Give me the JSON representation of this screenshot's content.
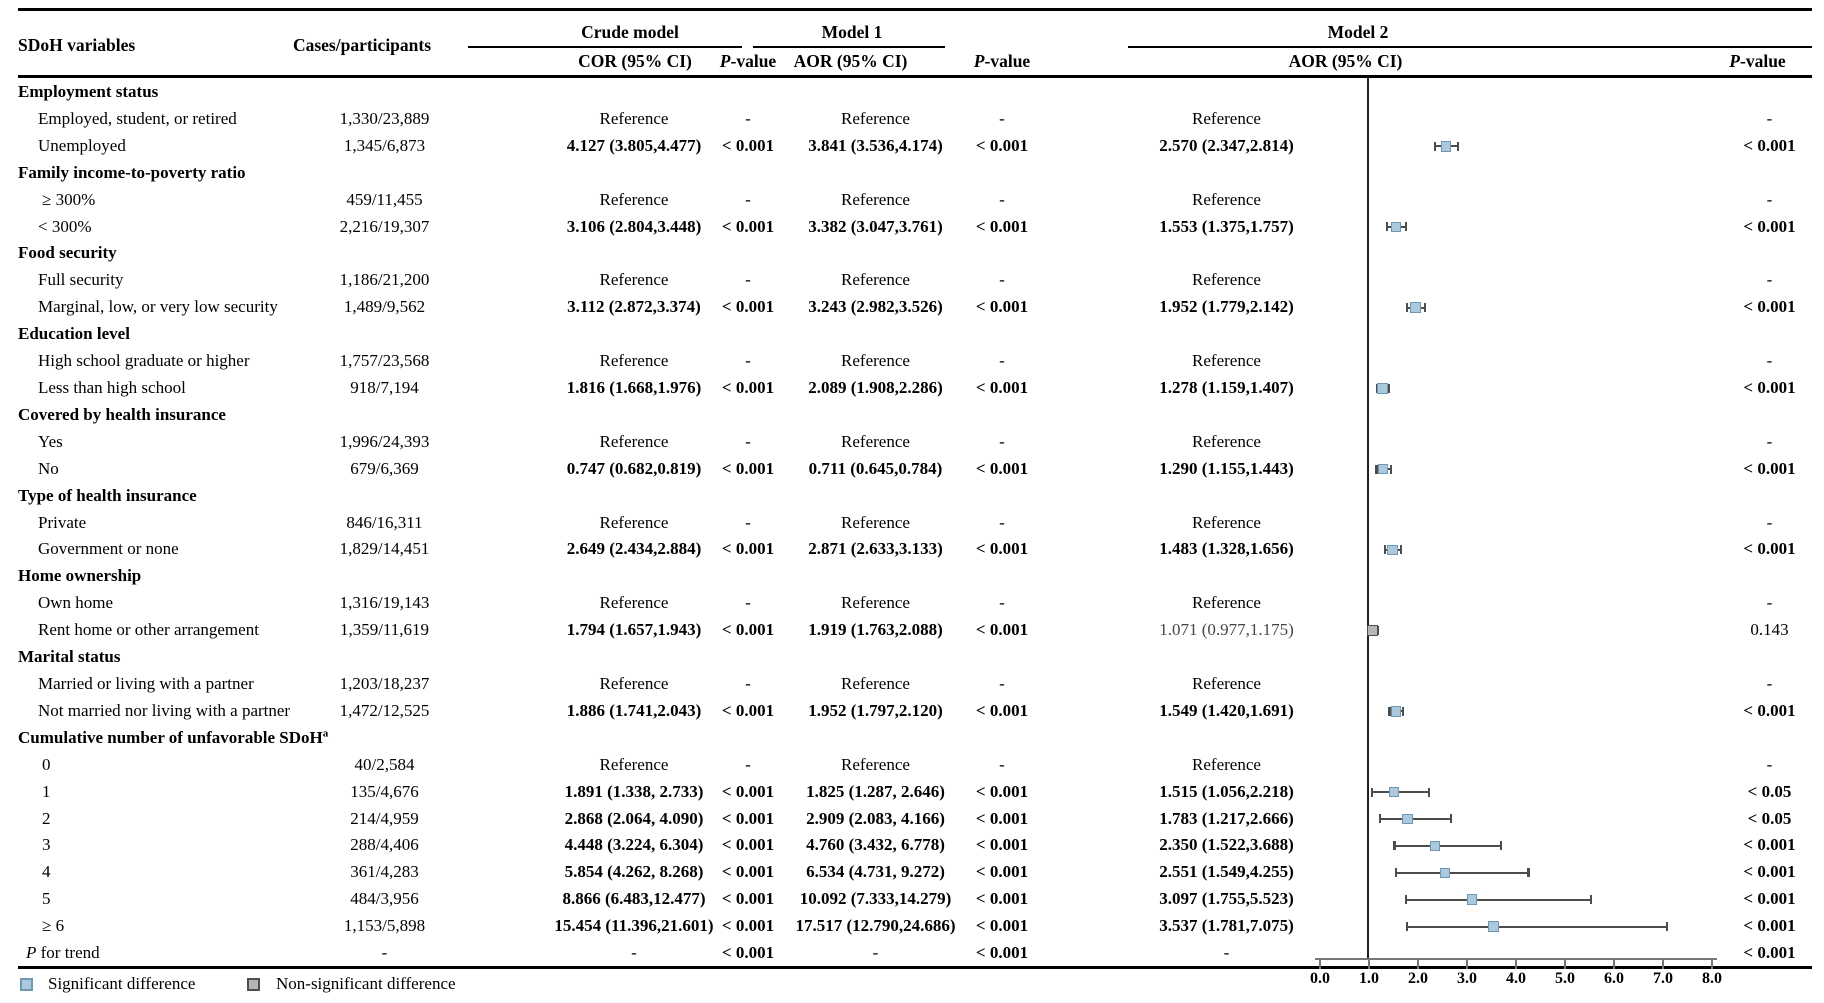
{
  "header": {
    "col_sdoh": "SDoH variables",
    "col_cases": "Cases/participants",
    "group_crude": "Crude model",
    "group_model1": "Model 1",
    "group_model2": "Model 2",
    "col_cor": "COR (95% CI)",
    "col_aor_m1": "AOR (95% CI)",
    "col_aor_m2": "AOR (95% CI)",
    "p_italic": "P",
    "p_rest": "-value"
  },
  "axis": {
    "tick_labels": [
      "0.0",
      "1.0",
      "2.0",
      "3.0",
      "4.0",
      "5.0",
      "6.0",
      "7.0",
      "8.0"
    ],
    "min": 0,
    "max": 8,
    "reference_value": 1.0
  },
  "legend": {
    "significant": "Significant difference",
    "non_significant": "Non-significant difference"
  },
  "colors": {
    "significant_fill": "#abc8dc",
    "significant_border": "#6d98b4",
    "nonsignificant_fill": "#b5b5b5",
    "nonsignificant_border": "#4f4f4f",
    "ci_line": "#4d4d4d",
    "axis_line": "#767676"
  },
  "rows": [
    {
      "t": "g",
      "label": "Employment status"
    },
    {
      "t": "i",
      "label": "Employed, student, or retired",
      "cases": "1,330/23,889",
      "cor": "Reference",
      "corP": "-",
      "a1": "Reference",
      "a1P": "-",
      "a2": "Reference",
      "a2P": "-",
      "mk": null
    },
    {
      "t": "i",
      "label": "Unemployed",
      "cases": "1,345/6,873",
      "cor": "4.127 (3.805,4.477)",
      "corP": "< 0.001",
      "a1": "3.841 (3.536,4.174)",
      "a1P": "< 0.001",
      "a2": "2.570 (2.347,2.814)",
      "a2P": "< 0.001",
      "mk": [
        2.57,
        2.347,
        2.814,
        1
      ]
    },
    {
      "t": "g",
      "label": "Family income-to-poverty ratio"
    },
    {
      "t": "i",
      "label": "≥ 300%",
      "cases": "459/11,455",
      "cor": "Reference",
      "corP": "-",
      "a1": "Reference",
      "a1P": "-",
      "a2": "Reference",
      "a2P": "-",
      "mk": null
    },
    {
      "t": "i",
      "label": "< 300%",
      "cases": "2,216/19,307",
      "cor": "3.106 (2.804,3.448)",
      "corP": "< 0.001",
      "a1": "3.382 (3.047,3.761)",
      "a1P": "< 0.001",
      "a2": "1.553 (1.375,1.757)",
      "a2P": "< 0.001",
      "mk": [
        1.553,
        1.375,
        1.757,
        1
      ]
    },
    {
      "t": "g",
      "label": "Food security"
    },
    {
      "t": "i",
      "label": "Full security",
      "cases": "1,186/21,200",
      "cor": "Reference",
      "corP": "-",
      "a1": "Reference",
      "a1P": "-",
      "a2": "Reference",
      "a2P": "-",
      "mk": null
    },
    {
      "t": "i",
      "label": "Marginal, low, or very low security",
      "cases": "1,489/9,562",
      "cor": "3.112 (2.872,3.374)",
      "corP": "< 0.001",
      "a1": "3.243 (2.982,3.526)",
      "a1P": "< 0.001",
      "a2": "1.952 (1.779,2.142)",
      "a2P": "< 0.001",
      "mk": [
        1.952,
        1.779,
        2.142,
        1
      ]
    },
    {
      "t": "g",
      "label": "Education level"
    },
    {
      "t": "i",
      "label": "High school graduate or higher",
      "cases": "1,757/23,568",
      "cor": "Reference",
      "corP": "-",
      "a1": "Reference",
      "a1P": "-",
      "a2": "Reference",
      "a2P": "-",
      "mk": null
    },
    {
      "t": "i",
      "label": "Less than high school",
      "cases": "918/7,194",
      "cor": "1.816 (1.668,1.976)",
      "corP": "< 0.001",
      "a1": "2.089 (1.908,2.286)",
      "a1P": "< 0.001",
      "a2": "1.278 (1.159,1.407)",
      "a2P": "< 0.001",
      "mk": [
        1.278,
        1.159,
        1.407,
        1
      ]
    },
    {
      "t": "g",
      "label": "Covered by health insurance"
    },
    {
      "t": "i",
      "label": "Yes",
      "cases": "1,996/24,393",
      "cor": "Reference",
      "corP": "-",
      "a1": "Reference",
      "a1P": "-",
      "a2": "Reference",
      "a2P": "-",
      "mk": null
    },
    {
      "t": "i",
      "label": "No",
      "cases": "679/6,369",
      "cor": "0.747 (0.682,0.819)",
      "corP": "< 0.001",
      "a1": "0.711 (0.645,0.784)",
      "a1P": "< 0.001",
      "a2": "1.290 (1.155,1.443)",
      "a2P": "< 0.001",
      "mk": [
        1.29,
        1.155,
        1.443,
        1
      ]
    },
    {
      "t": "g",
      "label": "Type of health insurance"
    },
    {
      "t": "i",
      "label": "Private",
      "cases": "846/16,311",
      "cor": "Reference",
      "corP": "-",
      "a1": "Reference",
      "a1P": "-",
      "a2": "Reference",
      "a2P": "-",
      "mk": null
    },
    {
      "t": "i",
      "label": "Government or none",
      "cases": "1,829/14,451",
      "cor": "2.649 (2.434,2.884)",
      "corP": "< 0.001",
      "a1": "2.871 (2.633,3.133)",
      "a1P": "< 0.001",
      "a2": "1.483 (1.328,1.656)",
      "a2P": "< 0.001",
      "mk": [
        1.483,
        1.328,
        1.656,
        1
      ]
    },
    {
      "t": "g",
      "label": "Home ownership"
    },
    {
      "t": "i",
      "label": "Own home",
      "cases": "1,316/19,143",
      "cor": "Reference",
      "corP": "-",
      "a1": "Reference",
      "a1P": "-",
      "a2": "Reference",
      "a2P": "-",
      "mk": null
    },
    {
      "t": "i",
      "label": "Rent home or other arrangement",
      "cases": "1,359/11,619",
      "cor": "1.794 (1.657,1.943)",
      "corP": "< 0.001",
      "a1": "1.919 (1.763,2.088)",
      "a1P": "< 0.001",
      "a2": "1.071 (0.977,1.175)",
      "a2P": "0.143",
      "a2m": 1,
      "mk": [
        1.071,
        0.977,
        1.175,
        0
      ]
    },
    {
      "t": "g",
      "label": "Marital status"
    },
    {
      "t": "i",
      "label": "Married or living with a partner",
      "cases": "1,203/18,237",
      "cor": "Reference",
      "corP": "-",
      "a1": "Reference",
      "a1P": "-",
      "a2": "Reference",
      "a2P": "-",
      "mk": null
    },
    {
      "t": "i",
      "label": "Not married nor living with a partner",
      "cases": "1,472/12,525",
      "cor": "1.886 (1.741,2.043)",
      "corP": "< 0.001",
      "a1": "1.952 (1.797,2.120)",
      "a1P": "< 0.001",
      "a2": "1.549 (1.420,1.691)",
      "a2P": "< 0.001",
      "mk": [
        1.549,
        1.42,
        1.691,
        1
      ]
    },
    {
      "t": "g",
      "label": "Cumulative number of unfavorable SDoH",
      "sup": "a"
    },
    {
      "t": "i",
      "label": "0",
      "cases": "40/2,584",
      "cor": "Reference",
      "corP": "-",
      "a1": "Reference",
      "a1P": "-",
      "a2": "Reference",
      "a2P": "-",
      "mk": null
    },
    {
      "t": "i",
      "label": "1",
      "cases": "135/4,676",
      "cor": "1.891 (1.338, 2.733)",
      "corP": "< 0.001",
      "a1": "1.825 (1.287, 2.646)",
      "a1P": "< 0.001",
      "a2": "1.515 (1.056,2.218)",
      "a2P": "< 0.05",
      "mk": [
        1.515,
        1.056,
        2.218,
        1
      ]
    },
    {
      "t": "i",
      "label": "2",
      "cases": "214/4,959",
      "cor": "2.868 (2.064, 4.090)",
      "corP": "< 0.001",
      "a1": "2.909 (2.083, 4.166)",
      "a1P": "< 0.001",
      "a2": "1.783 (1.217,2.666)",
      "a2P": "< 0.05",
      "mk": [
        1.783,
        1.217,
        2.666,
        1
      ]
    },
    {
      "t": "i",
      "label": "3",
      "cases": "288/4,406",
      "cor": "4.448 (3.224, 6.304)",
      "corP": "< 0.001",
      "a1": "4.760 (3.432, 6.778)",
      "a1P": "< 0.001",
      "a2": "2.350 (1.522,3.688)",
      "a2P": "< 0.001",
      "mk": [
        2.35,
        1.522,
        3.688,
        1
      ]
    },
    {
      "t": "i",
      "label": "4",
      "cases": "361/4,283",
      "cor": "5.854 (4.262, 8.268)",
      "corP": "< 0.001",
      "a1": "6.534 (4.731, 9.272)",
      "a1P": "< 0.001",
      "a2": "2.551 (1.549,4.255)",
      "a2P": "< 0.001",
      "mk": [
        2.551,
        1.549,
        4.255,
        1
      ]
    },
    {
      "t": "i",
      "label": "5",
      "cases": "484/3,956",
      "cor": "8.866 (6.483,12.477)",
      "corP": "< 0.001",
      "a1": "10.092 (7.333,14.279)",
      "a1P": "< 0.001",
      "a2": "3.097 (1.755,5.523)",
      "a2P": "< 0.001",
      "mk": [
        3.097,
        1.755,
        5.523,
        1
      ]
    },
    {
      "t": "i",
      "label": "≥ 6",
      "cases": "1,153/5,898",
      "cor": "15.454 (11.396,21.601)",
      "corP": "< 0.001",
      "a1": "17.517 (12.790,24.686)",
      "a1P": "< 0.001",
      "a2": "3.537 (1.781,7.075)",
      "a2P": "< 0.001",
      "mk": [
        3.537,
        1.781,
        7.075,
        1
      ]
    },
    {
      "t": "t",
      "label_italic": "P",
      "label_rest": " for trend",
      "cases": "-",
      "cor": "-",
      "corP": "< 0.001",
      "a1": "-",
      "a1P": "< 0.001",
      "a2": "-",
      "a2P": "< 0.001",
      "mk": null
    }
  ],
  "chart_data": {
    "type": "scatter",
    "title": "Model 2 AOR (95% CI) forest plot",
    "xlabel": "AOR (95% CI)",
    "xlim": [
      0,
      8
    ],
    "xticks": [
      0.0,
      1.0,
      2.0,
      3.0,
      4.0,
      5.0,
      6.0,
      7.0,
      8.0
    ],
    "reference_line_x": 1.0,
    "legend_position": "bottom-left",
    "points": [
      {
        "label": "Unemployed",
        "aor": 2.57,
        "ci_low": 2.347,
        "ci_high": 2.814,
        "significant": true
      },
      {
        "label": "< 300%",
        "aor": 1.553,
        "ci_low": 1.375,
        "ci_high": 1.757,
        "significant": true
      },
      {
        "label": "Marginal, low, or very low security",
        "aor": 1.952,
        "ci_low": 1.779,
        "ci_high": 2.142,
        "significant": true
      },
      {
        "label": "Less than high school",
        "aor": 1.278,
        "ci_low": 1.159,
        "ci_high": 1.407,
        "significant": true
      },
      {
        "label": "No",
        "aor": 1.29,
        "ci_low": 1.155,
        "ci_high": 1.443,
        "significant": true
      },
      {
        "label": "Government or none",
        "aor": 1.483,
        "ci_low": 1.328,
        "ci_high": 1.656,
        "significant": true
      },
      {
        "label": "Rent home or other arrangement",
        "aor": 1.071,
        "ci_low": 0.977,
        "ci_high": 1.175,
        "significant": false
      },
      {
        "label": "Not married nor living with a partner",
        "aor": 1.549,
        "ci_low": 1.42,
        "ci_high": 1.691,
        "significant": true
      },
      {
        "label": "1",
        "aor": 1.515,
        "ci_low": 1.056,
        "ci_high": 2.218,
        "significant": true
      },
      {
        "label": "2",
        "aor": 1.783,
        "ci_low": 1.217,
        "ci_high": 2.666,
        "significant": true
      },
      {
        "label": "3",
        "aor": 2.35,
        "ci_low": 1.522,
        "ci_high": 3.688,
        "significant": true
      },
      {
        "label": "4",
        "aor": 2.551,
        "ci_low": 1.549,
        "ci_high": 4.255,
        "significant": true
      },
      {
        "label": "5",
        "aor": 3.097,
        "ci_low": 1.755,
        "ci_high": 5.523,
        "significant": true
      },
      {
        "label": "≥ 6",
        "aor": 3.537,
        "ci_low": 1.781,
        "ci_high": 7.075,
        "significant": true
      }
    ]
  }
}
